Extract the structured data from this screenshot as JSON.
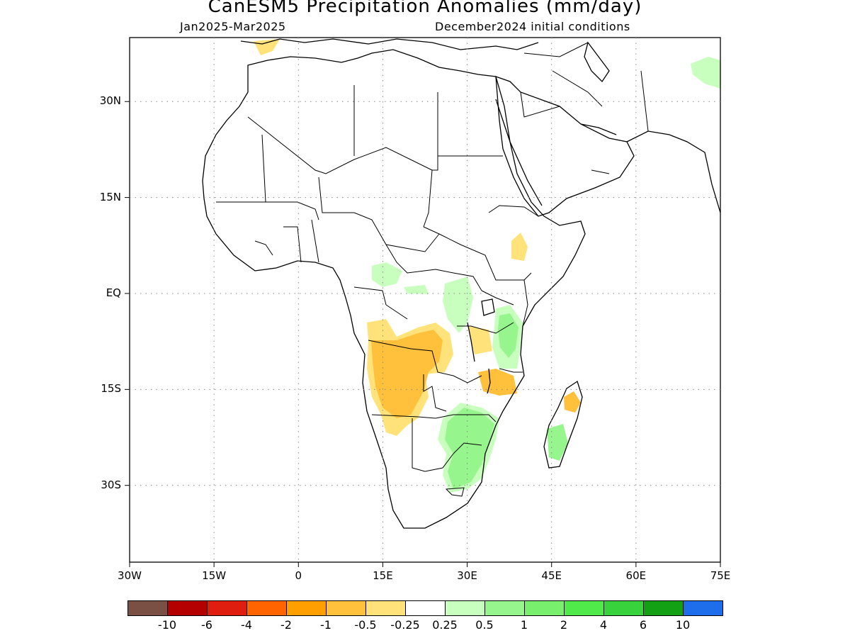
{
  "title": "CanESM5 Precipitation Anomalies (mm/day)",
  "subtitle_left": "Jan2025-Mar2025",
  "subtitle_right": "December2024 initial conditions",
  "map": {
    "lon_range": [
      -30,
      75
    ],
    "lat_range": [
      -42,
      40
    ],
    "grid": true,
    "lat_ticks": [
      "30N",
      "15N",
      "EQ",
      "15S",
      "30S"
    ],
    "lon_ticks": [
      "30W",
      "15W",
      "0",
      "15E",
      "30E",
      "45E",
      "60E",
      "75E"
    ],
    "lat_tick_values": [
      30,
      15,
      0,
      -15,
      -30
    ],
    "lon_tick_values": [
      -30,
      -15,
      0,
      15,
      30,
      45,
      60,
      75
    ]
  },
  "colorbar": {
    "colors": [
      "#7a5045",
      "#b40000",
      "#e01e10",
      "#ff6400",
      "#ffa000",
      "#ffc03c",
      "#ffe37a",
      "#ffffff",
      "#c8ffbe",
      "#96f58c",
      "#78f06e",
      "#50eb4b",
      "#37d23c",
      "#14a014",
      "#1e6eeb"
    ],
    "labels": [
      "-10",
      "-6",
      "-4",
      "-2",
      "-1",
      "-0.5",
      "-0.25",
      "0.25",
      "0.5",
      "1",
      "2",
      "4",
      "6",
      "10"
    ]
  },
  "anomaly_regions": [
    {
      "name": "angola-dry",
      "level": -1,
      "color": "#ffc03c",
      "lon": 16,
      "lat": -13
    },
    {
      "name": "congo-dry",
      "level": -0.25,
      "color": "#ffe37a",
      "lon": 22,
      "lat": -8
    },
    {
      "name": "ethiopia-dry",
      "level": -0.25,
      "color": "#ffe37a",
      "lon": 40,
      "lat": 8
    },
    {
      "name": "tanzania-dry",
      "level": -0.5,
      "color": "#ffc03c",
      "lon": 35,
      "lat": -12
    },
    {
      "name": "madagascar-dry",
      "level": -0.5,
      "color": "#ffc03c",
      "lon": 49,
      "lat": -15
    },
    {
      "name": "zimbabwe-wet",
      "level": 0.5,
      "color": "#96f58c",
      "lon": 29,
      "lat": -20
    },
    {
      "name": "east-africa-wet",
      "level": 0.5,
      "color": "#96f58c",
      "lon": 38,
      "lat": -4
    },
    {
      "name": "madagascar-wet",
      "level": 0.5,
      "color": "#96f58c",
      "lon": 46,
      "lat": -21
    },
    {
      "name": "iran-wet",
      "level": 0.25,
      "color": "#c8ffbe",
      "lon": 73,
      "lat": 35
    }
  ]
}
